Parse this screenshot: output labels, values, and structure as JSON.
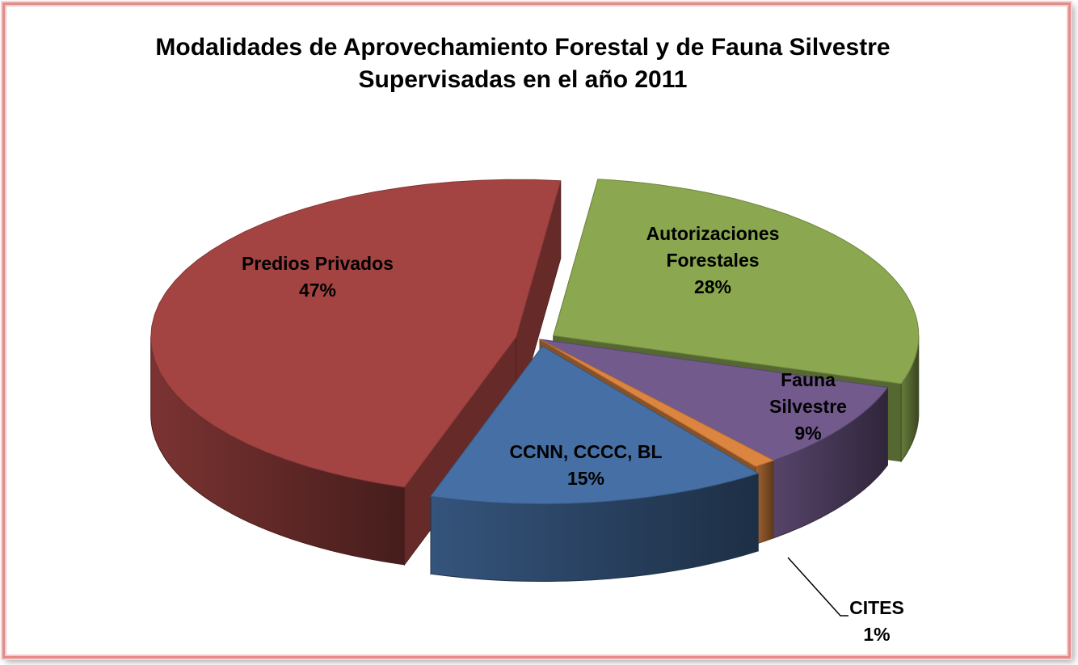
{
  "chart_data": {
    "type": "pie",
    "title_line1": "Modalidades de Aprovechamiento Forestal y de Fauna Silvestre",
    "title_line2": "Supervisadas en el año 2011",
    "slices": [
      {
        "label_lines": [
          "Autorizaciones",
          "Forestales"
        ],
        "value": 28,
        "value_label": "28%",
        "color": "#8ba74f"
      },
      {
        "label_lines": [
          "Fauna",
          "Silvestre"
        ],
        "value": 9,
        "value_label": "9%",
        "color": "#725a8c"
      },
      {
        "label_lines": [
          "CITES"
        ],
        "value": 1,
        "value_label": "1%",
        "color": "#dc8540"
      },
      {
        "label_lines": [
          "CCNN, CCCC, BL"
        ],
        "value": 15,
        "value_label": "15%",
        "color": "#4670a5"
      },
      {
        "label_lines": [
          "Predios Privados"
        ],
        "value": 47,
        "value_label": "47%",
        "color": "#a44442"
      }
    ]
  }
}
